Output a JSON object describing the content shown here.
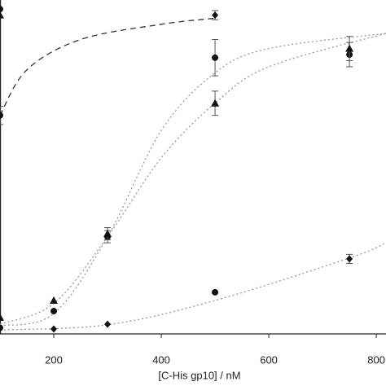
{
  "chart_data": {
    "type": "scatter",
    "x_label": "[C-His gp10] / nM",
    "xlim": [
      100,
      818
    ],
    "xticks": [
      200,
      400,
      600,
      800
    ],
    "ylim": [
      0,
      1.1
    ],
    "series": [
      {
        "marker": "circle",
        "color": "#111111",
        "x": [
          100,
          200,
          300,
          500,
          750
        ],
        "values": [
          0.02,
          0.075,
          0.32,
          0.91,
          0.92
        ],
        "errors": [
          null,
          null,
          0.02,
          0.06,
          0.04
        ]
      },
      {
        "marker": "triangle",
        "color": "#111111",
        "x": [
          100,
          200,
          300,
          500,
          750
        ],
        "values": [
          0.054,
          0.11,
          0.33,
          0.76,
          0.94
        ],
        "errors": [
          null,
          null,
          0.02,
          0.04,
          0.04
        ]
      },
      {
        "marker": "diamond",
        "color": "#111111",
        "x": [
          200,
          300,
          750
        ],
        "values": [
          0.016,
          0.032,
          0.247
        ],
        "errors": [
          null,
          null,
          0.015
        ]
      },
      {
        "marker": "circle",
        "color": "#111111",
        "x": [
          500
        ],
        "values": [
          0.137
        ],
        "errors": [
          null
        ]
      },
      {
        "marker": "circle",
        "color": "#111111",
        "x": [
          100,
          100
        ],
        "values": [
          0.72,
          1.07
        ],
        "errors": [
          0.03,
          null
        ]
      },
      {
        "marker": "triangle",
        "color": "#111111",
        "x": [
          100
        ],
        "values": [
          1.05
        ],
        "errors": [
          null
        ]
      },
      {
        "marker": "diamond",
        "color": "#111111",
        "x": [
          500
        ],
        "values": [
          1.05
        ],
        "errors": [
          0.015
        ]
      }
    ],
    "fits": [
      {
        "dash": "2,3",
        "color": "#999999",
        "x": [
          100,
          200,
          300,
          400,
          500,
          600,
          818
        ],
        "values": [
          0.027,
          0.067,
          0.32,
          0.67,
          0.86,
          0.94,
          0.99
        ]
      },
      {
        "dash": "2,3",
        "color": "#999999",
        "x": [
          100,
          200,
          300,
          400,
          500,
          600,
          818
        ],
        "values": [
          0.032,
          0.1,
          0.32,
          0.58,
          0.76,
          0.88,
          0.99
        ]
      },
      {
        "dash": "2,3",
        "color": "#999999",
        "x": [
          100,
          300,
          500,
          750,
          818
        ],
        "values": [
          0.013,
          0.03,
          0.11,
          0.25,
          0.3
        ]
      },
      {
        "dash": "7,5",
        "color": "#333333",
        "x": [
          100,
          150,
          250,
          400,
          500
        ],
        "values": [
          0.72,
          0.87,
          0.97,
          1.02,
          1.04
        ]
      }
    ]
  }
}
